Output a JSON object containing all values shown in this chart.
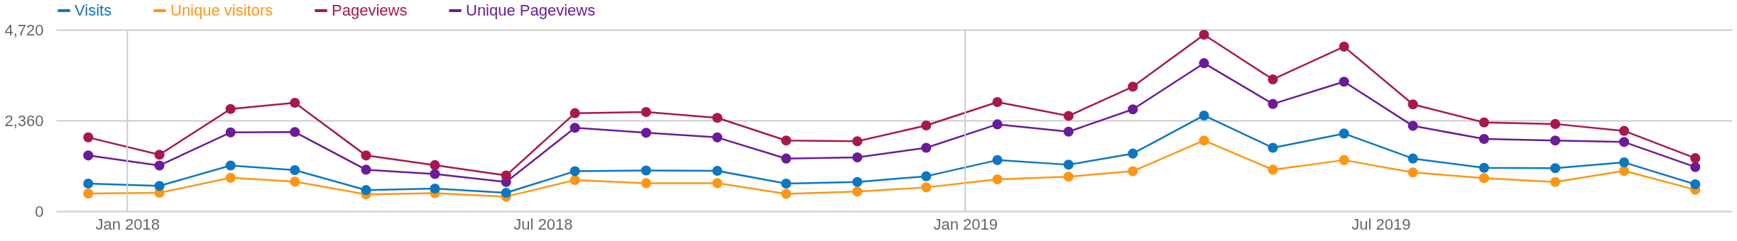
{
  "chart_data": {
    "type": "line",
    "x": [
      "2017-12-15",
      "2018-01-15",
      "2018-02-15",
      "2018-03-15",
      "2018-04-15",
      "2018-05-15",
      "2018-06-15",
      "2018-07-15",
      "2018-08-15",
      "2018-09-15",
      "2018-10-15",
      "2018-11-15",
      "2018-12-15",
      "2019-01-15",
      "2019-02-15",
      "2019-03-15",
      "2019-04-15",
      "2019-05-15",
      "2019-06-15",
      "2019-07-15",
      "2019-08-15",
      "2019-09-15",
      "2019-10-15",
      "2019-11-15"
    ],
    "series": [
      {
        "name": "Visits",
        "color": "#0c77c1",
        "values": [
          720,
          660,
          1190,
          1070,
          550,
          590,
          480,
          1040,
          1060,
          1050,
          720,
          760,
          910,
          1330,
          1210,
          1500,
          2490,
          1650,
          2020,
          1370,
          1130,
          1120,
          1270,
          700
        ]
      },
      {
        "name": "Unique visitors",
        "color": "#ff9613",
        "values": [
          460,
          480,
          870,
          770,
          440,
          470,
          380,
          810,
          730,
          730,
          450,
          510,
          620,
          830,
          900,
          1040,
          1840,
          1080,
          1330,
          1010,
          860,
          760,
          1050,
          560
        ]
      },
      {
        "name": "Pageviews",
        "color": "#a8174f",
        "values": [
          1920,
          1470,
          2660,
          2820,
          1450,
          1200,
          930,
          2550,
          2580,
          2430,
          1840,
          1820,
          2230,
          2840,
          2480,
          3240,
          4590,
          3430,
          4280,
          2780,
          2310,
          2270,
          2090,
          1380
        ]
      },
      {
        "name": "Unique Pageviews",
        "color": "#6a1b9a",
        "values": [
          1450,
          1190,
          2050,
          2060,
          1080,
          970,
          760,
          2170,
          2040,
          1920,
          1370,
          1400,
          1650,
          2260,
          2070,
          2650,
          3850,
          2790,
          3370,
          2220,
          1880,
          1840,
          1800,
          1150
        ]
      }
    ],
    "xlim": [
      "2017-12-01",
      "2019-12-01"
    ],
    "xticks": [
      {
        "value": "2018-01-01",
        "label": "Jan 2018"
      },
      {
        "value": "2018-07-01",
        "label": "Jul 2018"
      },
      {
        "value": "2019-01-01",
        "label": "Jan 2019"
      },
      {
        "value": "2019-07-01",
        "label": "Jul 2019"
      }
    ],
    "ylim": [
      0,
      4720
    ],
    "yticks": [
      {
        "value": 0,
        "label": "0"
      },
      {
        "value": 2360,
        "label": "2,360"
      },
      {
        "value": 4720,
        "label": "4,720"
      }
    ],
    "ref_lines": [
      {
        "axis": "x",
        "value": "2018-01-01",
        "color": "#cccccc"
      },
      {
        "axis": "x",
        "value": "2019-01-01",
        "color": "#cccccc"
      }
    ],
    "grid": "y",
    "legend": "top left",
    "marker": "circle",
    "line_style": "solid"
  }
}
